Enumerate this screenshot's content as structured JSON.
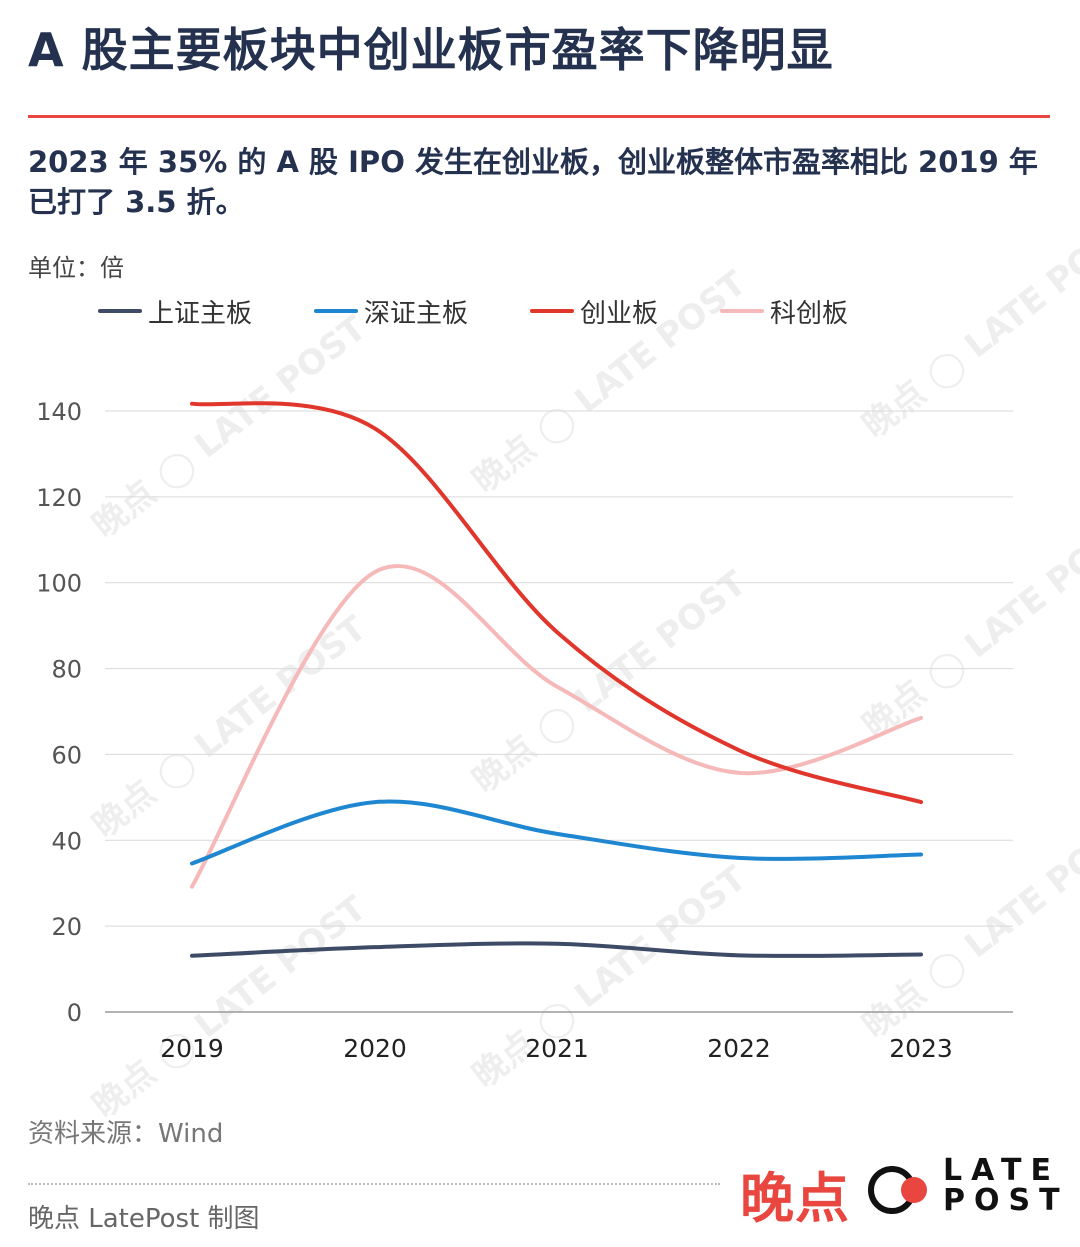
{
  "title": "A 股主要板块中创业板市盈率下降明显",
  "subtitle": "2023 年 35% 的 A 股 IPO 发生在创业板，创业板整体市盈率相比 2019 年已打了 3.5 折。",
  "unit": "单位：倍",
  "source": "资料来源：Wind",
  "footer_credit": "晚点 LatePost 制图",
  "brand": {
    "cn": "晚点",
    "en_line1": "LATE",
    "en_line2": "POST",
    "watermark_cn": "晚点",
    "watermark_en": "LATE POST"
  },
  "colors": {
    "title_rule": "#e8463e",
    "brand_red": "#e8463e"
  },
  "chart_data": {
    "type": "line",
    "categories": [
      "2019",
      "2020",
      "2021",
      "2022",
      "2023"
    ],
    "ylim": [
      0,
      140
    ],
    "yticks": [
      0,
      20,
      40,
      60,
      80,
      100,
      120,
      140
    ],
    "series": [
      {
        "name": "上证主板",
        "color": "#3e4b66",
        "values": [
          13.1,
          15.1,
          15.9,
          13.2,
          13.4
        ]
      },
      {
        "name": "深证主板",
        "color": "#1f86d1",
        "values": [
          34.6,
          48.9,
          41.5,
          35.9,
          36.7
        ]
      },
      {
        "name": "创业板",
        "color": "#e0362b",
        "values": [
          141.7,
          135.9,
          88.5,
          61.0,
          48.9
        ]
      },
      {
        "name": "科创板",
        "color": "#f6b9b9",
        "values": [
          29.2,
          102.5,
          75.8,
          55.7,
          68.5
        ]
      }
    ]
  }
}
